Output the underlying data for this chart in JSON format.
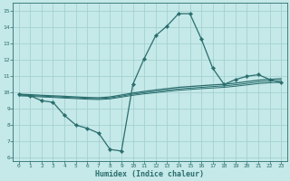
{
  "xlabel": "Humidex (Indice chaleur)",
  "xlim": [
    -0.5,
    23.5
  ],
  "ylim": [
    5.8,
    15.5
  ],
  "yticks": [
    6,
    7,
    8,
    9,
    10,
    11,
    12,
    13,
    14,
    15
  ],
  "xticks": [
    0,
    1,
    2,
    3,
    4,
    5,
    6,
    7,
    8,
    9,
    10,
    11,
    12,
    13,
    14,
    15,
    16,
    17,
    18,
    19,
    20,
    21,
    22,
    23
  ],
  "bg_color": "#c5e8e8",
  "grid_color": "#9ecece",
  "line_color": "#2a6e6e",
  "series1_x": [
    0,
    1,
    2,
    3,
    4,
    5,
    6,
    7,
    8,
    9,
    10,
    11,
    12,
    13,
    14,
    15,
    16,
    17,
    18,
    19,
    20,
    21,
    22,
    23
  ],
  "series1_y": [
    9.9,
    9.8,
    9.5,
    9.4,
    8.6,
    8.0,
    7.8,
    7.5,
    6.5,
    6.4,
    10.5,
    12.1,
    13.5,
    14.1,
    14.85,
    14.85,
    13.3,
    11.5,
    10.5,
    10.8,
    11.0,
    11.1,
    10.8,
    10.6
  ],
  "series2_x": [
    0,
    1,
    2,
    3,
    4,
    5,
    6,
    7,
    8,
    9,
    10,
    11,
    12,
    13,
    14,
    15,
    16,
    17,
    18,
    19,
    20,
    21,
    22,
    23
  ],
  "series2_y": [
    9.9,
    9.87,
    9.83,
    9.8,
    9.77,
    9.73,
    9.7,
    9.68,
    9.73,
    9.85,
    9.97,
    10.07,
    10.16,
    10.24,
    10.32,
    10.37,
    10.42,
    10.47,
    10.51,
    10.58,
    10.67,
    10.76,
    10.81,
    10.85
  ],
  "series3_x": [
    0,
    1,
    2,
    3,
    4,
    5,
    6,
    7,
    8,
    9,
    10,
    11,
    12,
    13,
    14,
    15,
    16,
    17,
    18,
    19,
    20,
    21,
    22,
    23
  ],
  "series3_y": [
    9.85,
    9.82,
    9.78,
    9.75,
    9.71,
    9.68,
    9.64,
    9.62,
    9.67,
    9.78,
    9.9,
    9.99,
    10.07,
    10.15,
    10.22,
    10.27,
    10.32,
    10.37,
    10.41,
    10.48,
    10.56,
    10.65,
    10.7,
    10.74
  ],
  "series4_x": [
    0,
    1,
    2,
    3,
    4,
    5,
    6,
    7,
    8,
    9,
    10,
    11,
    12,
    13,
    14,
    15,
    16,
    17,
    18,
    19,
    20,
    21,
    22,
    23
  ],
  "series4_y": [
    9.8,
    9.77,
    9.73,
    9.7,
    9.66,
    9.63,
    9.59,
    9.57,
    9.61,
    9.72,
    9.83,
    9.92,
    9.99,
    10.07,
    10.14,
    10.19,
    10.24,
    10.28,
    10.32,
    10.39,
    10.47,
    10.55,
    10.6,
    10.63
  ]
}
